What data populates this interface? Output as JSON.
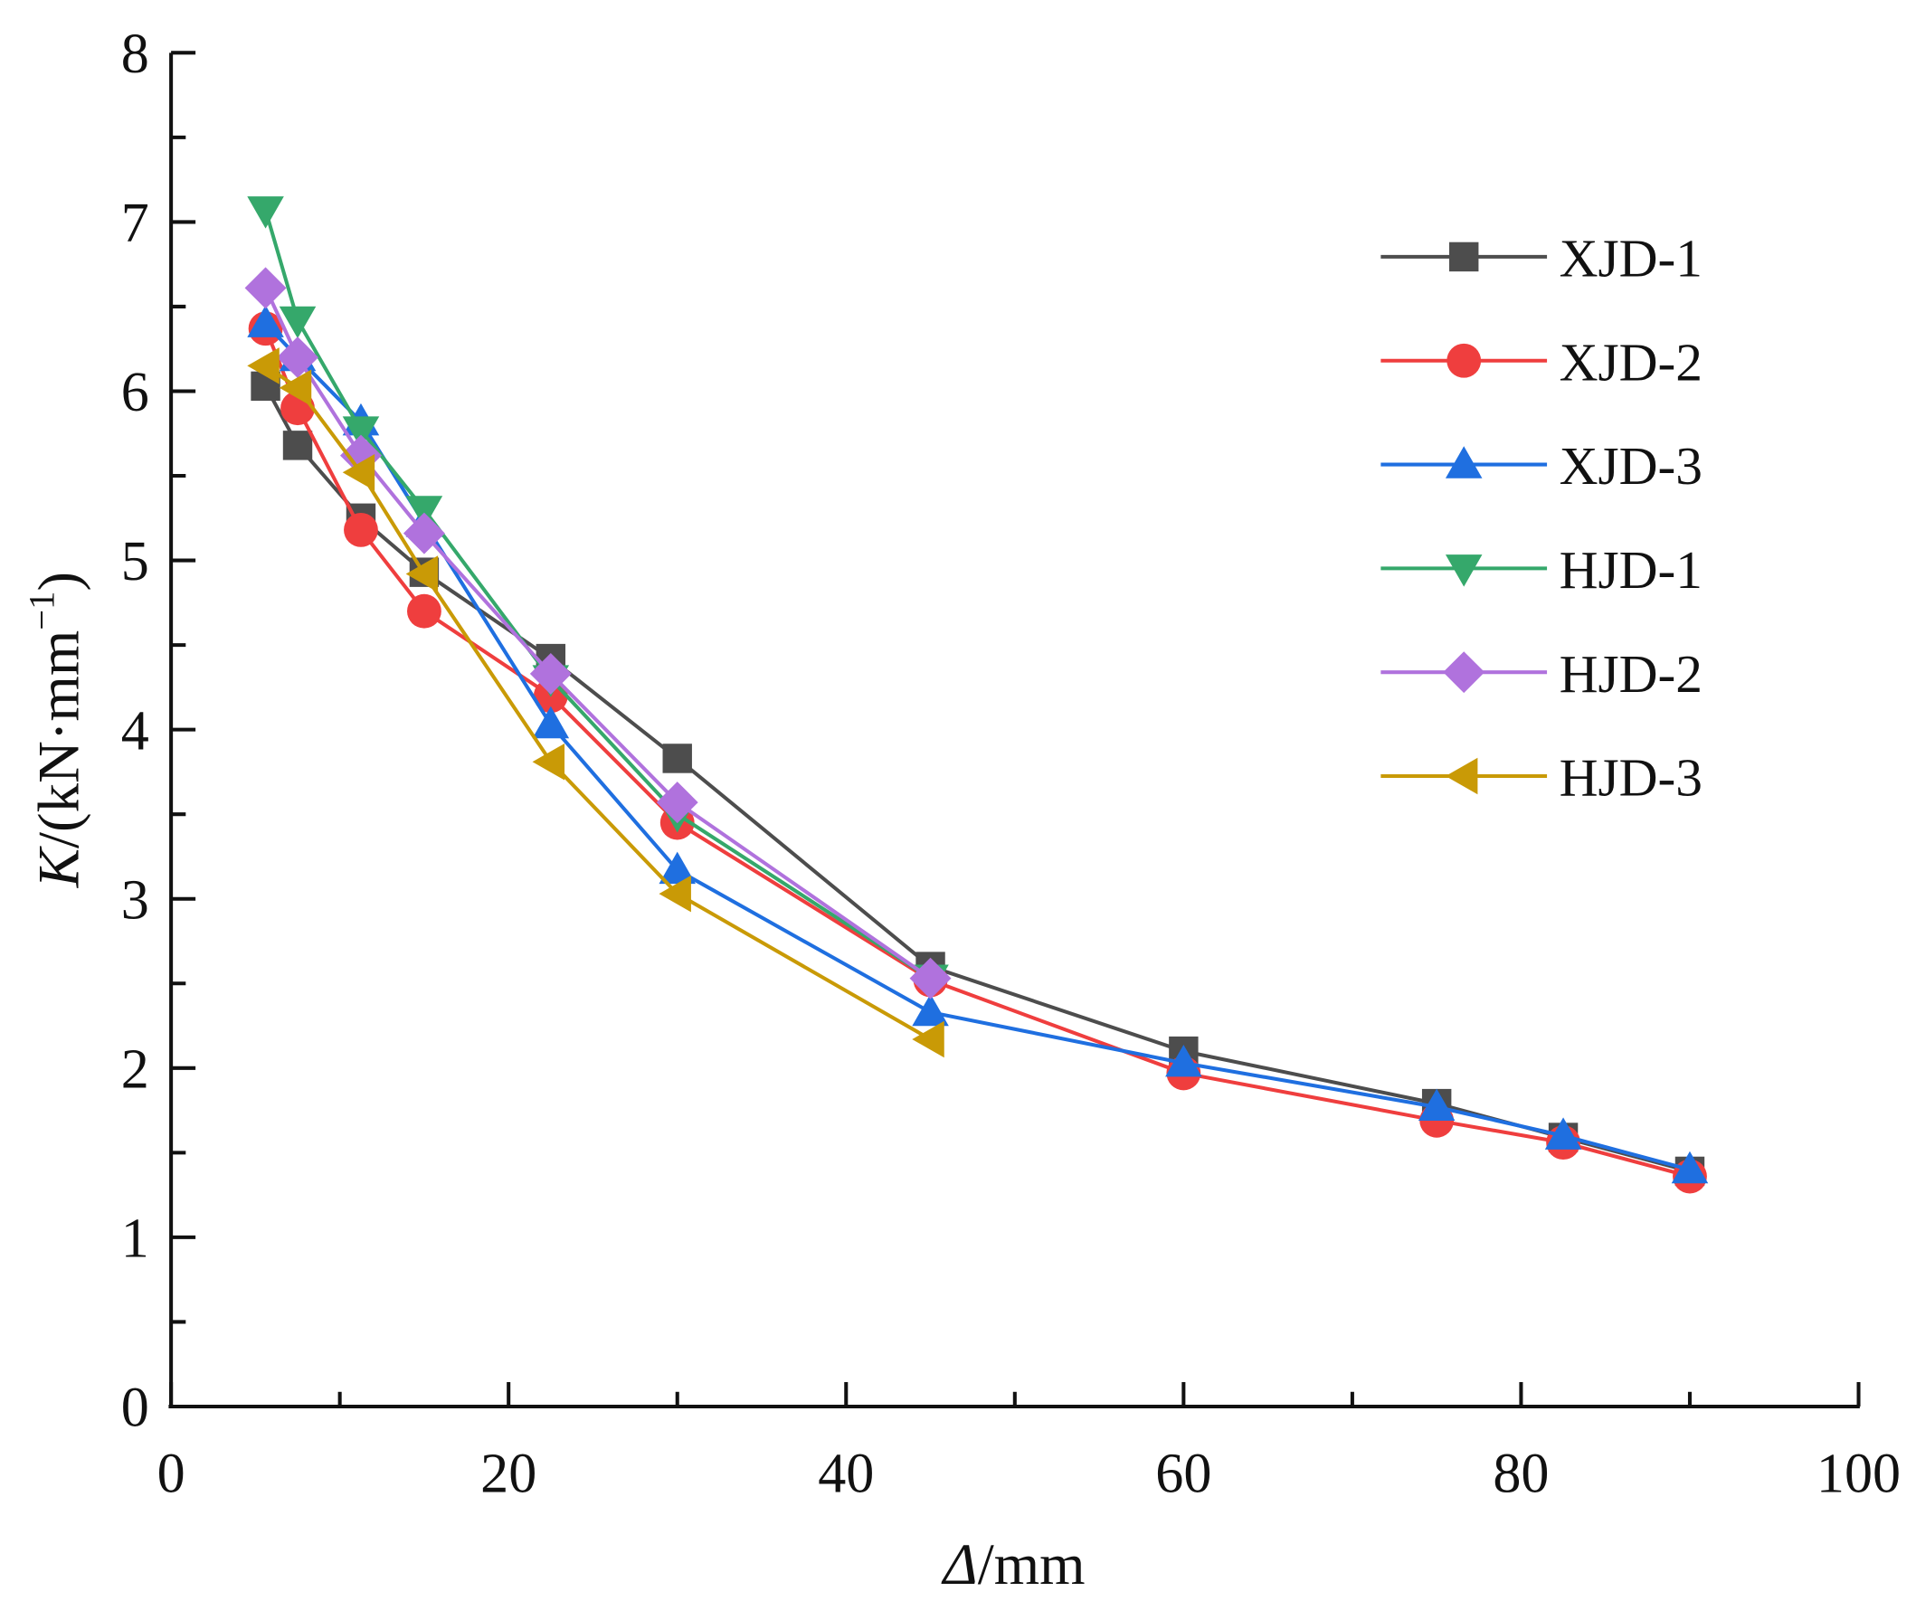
{
  "chart_data": {
    "type": "line",
    "title": "",
    "xlabel_italic": "Δ",
    "xlabel_rest": "/mm",
    "ylabel_italic": "K",
    "ylabel_rest": "/(kN·mm",
    "ylabel_sup": "−1",
    "ylabel_close": ")",
    "xlim": [
      0,
      100
    ],
    "ylim": [
      0,
      8
    ],
    "xticks": [
      "0",
      "20",
      "40",
      "60",
      "80",
      "100"
    ],
    "yticks": [
      "0",
      "1",
      "2",
      "3",
      "4",
      "5",
      "6",
      "7",
      "8"
    ],
    "grid": false,
    "legend_position": "top-right",
    "series": [
      {
        "name": "XJD-1",
        "color": "#4d4d4d",
        "marker": "square",
        "x": [
          5.6,
          7.5,
          11.25,
          15,
          22.5,
          30,
          45,
          60,
          75,
          82.5,
          90
        ],
        "y": [
          6.03,
          5.68,
          5.25,
          4.93,
          4.42,
          3.83,
          2.6,
          2.1,
          1.79,
          1.59,
          1.39
        ]
      },
      {
        "name": "XJD-2",
        "color": "#ef3e3e",
        "marker": "circle",
        "x": [
          5.6,
          7.5,
          11.25,
          15,
          22.5,
          30,
          45,
          60,
          75,
          82.5,
          90
        ],
        "y": [
          6.37,
          5.9,
          5.18,
          4.7,
          4.2,
          3.45,
          2.52,
          1.97,
          1.69,
          1.56,
          1.36
        ]
      },
      {
        "name": "XJD-3",
        "color": "#1f6fe0",
        "marker": "triangle-up",
        "x": [
          5.6,
          7.5,
          11.25,
          15,
          22.5,
          30,
          45,
          60,
          75,
          82.5,
          90
        ],
        "y": [
          6.4,
          6.2,
          5.82,
          5.22,
          4.03,
          3.17,
          2.33,
          2.03,
          1.77,
          1.6,
          1.4
        ]
      },
      {
        "name": "HJD-1",
        "color": "#35a86b",
        "marker": "triangle-down",
        "x": [
          5.6,
          7.5,
          11.25,
          15,
          22.5,
          30,
          45
        ],
        "y": [
          7.07,
          6.42,
          5.77,
          5.3,
          4.3,
          3.5,
          2.53
        ]
      },
      {
        "name": "HJD-2",
        "color": "#b072dd",
        "marker": "diamond",
        "x": [
          5.6,
          7.5,
          11.25,
          15,
          22.5,
          30,
          45
        ],
        "y": [
          6.61,
          6.2,
          5.62,
          5.16,
          4.33,
          3.57,
          2.53
        ]
      },
      {
        "name": "HJD-3",
        "color": "#c99a06",
        "marker": "triangle-left",
        "x": [
          5.6,
          7.5,
          11.25,
          15,
          22.5,
          30,
          45
        ],
        "y": [
          6.15,
          6.02,
          5.52,
          4.92,
          3.81,
          3.03,
          2.17
        ]
      }
    ]
  }
}
